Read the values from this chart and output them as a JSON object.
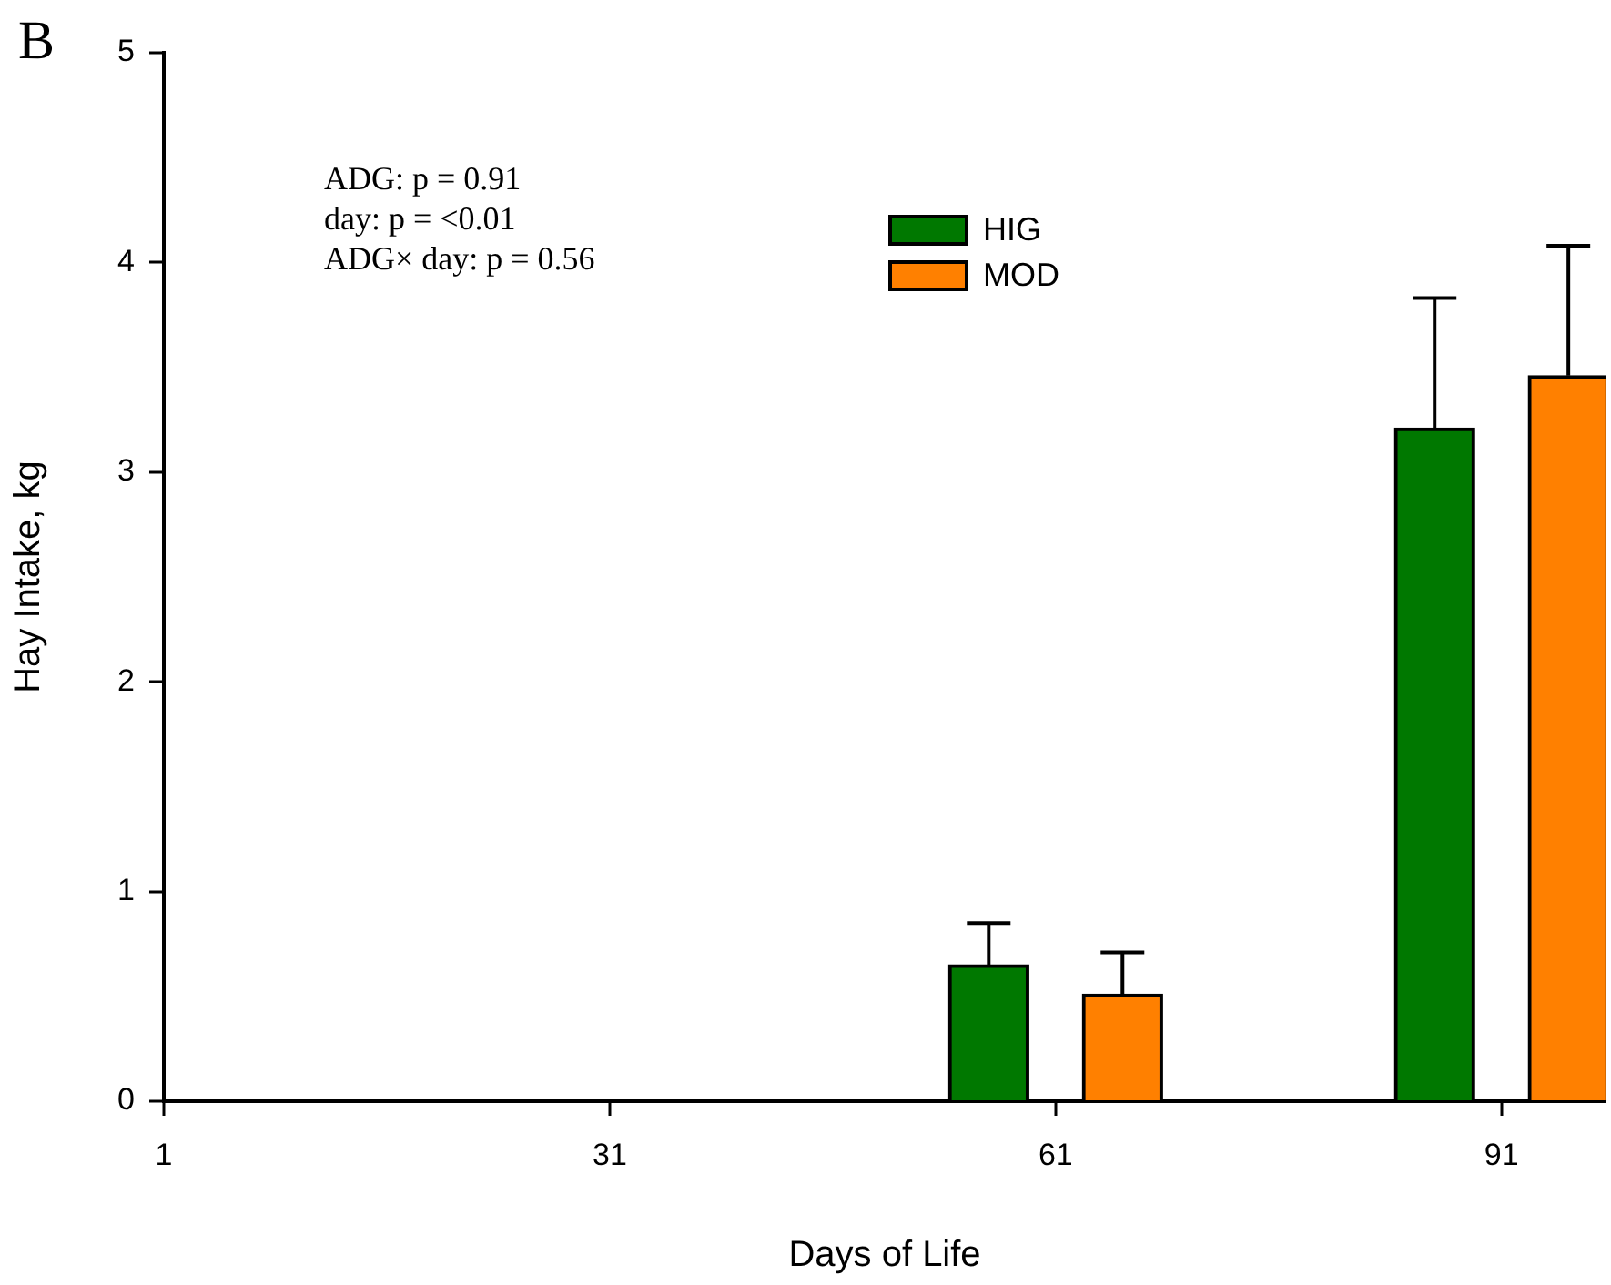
{
  "chart_data": {
    "type": "bar",
    "xlabel": "Days of Life",
    "ylabel": "Hay Intake, kg",
    "annotations": [
      "B",
      "ADG: p = 0.91",
      "day: p = <0.01",
      "ADG× day: p = 0.56"
    ],
    "xlim": [
      1,
      98
    ],
    "xticks": [
      1,
      31,
      61,
      91
    ],
    "ylim": [
      0,
      5
    ],
    "yticks": [
      0,
      1,
      2,
      3,
      4,
      5
    ],
    "grid": false,
    "legend": "top",
    "series": [
      {
        "name": "HIG",
        "color": "#007800",
        "x": [
          56.5,
          86.5
        ],
        "values": [
          0.65,
          3.21
        ],
        "errors": [
          [
            0.65,
            0.85
          ],
          [
            3.21,
            3.83
          ]
        ]
      },
      {
        "name": "MOD",
        "color": "#ff8000",
        "x": [
          65.5,
          95.5
        ],
        "values": [
          0.51,
          3.46
        ],
        "errors": [
          [
            0.51,
            0.71
          ],
          [
            3.46,
            4.08
          ]
        ]
      }
    ]
  }
}
